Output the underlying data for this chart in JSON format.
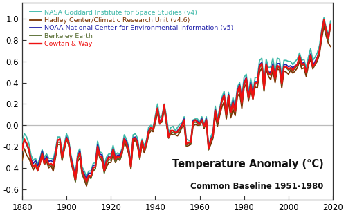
{
  "title": "Temperature Anomaly (°C)",
  "subtitle": "Common Baseline 1951-1980",
  "xlim": [
    1880,
    2020
  ],
  "ylim": [
    -0.7,
    1.15
  ],
  "yticks": [
    -0.6,
    -0.4,
    -0.2,
    0.0,
    0.2,
    0.4,
    0.6,
    0.8,
    1.0
  ],
  "xticks": [
    1880,
    1900,
    1920,
    1940,
    1960,
    1980,
    2000,
    2020
  ],
  "series_colors": [
    "#3CB8A8",
    "#7B3300",
    "#2222AA",
    "#556B2F",
    "#EE1111"
  ],
  "series_labels": [
    "NASA Goddard Institute for Space Studies (v4)",
    "Hadley Center/Climatic Research Unit (v4.6)",
    "NOAA National Center for Environmental Information (v5)",
    "Berkeley Earth",
    "Cowtan & Way"
  ],
  "series_lw": [
    1.3,
    1.3,
    1.3,
    1.3,
    1.7
  ],
  "series_zorder": [
    3,
    4,
    5,
    6,
    7
  ],
  "background_color": "#FFFFFF",
  "zero_line_color": "#BBBBBB",
  "legend_fontsize": 6.8,
  "title_fontsize": 10.5,
  "subtitle_fontsize": 8.5,
  "tick_fontsize": 8.5,
  "spine_color": "#333333",
  "years": [
    1880,
    1881,
    1882,
    1883,
    1884,
    1885,
    1886,
    1887,
    1888,
    1889,
    1890,
    1891,
    1892,
    1893,
    1894,
    1895,
    1896,
    1897,
    1898,
    1899,
    1900,
    1901,
    1902,
    1903,
    1904,
    1905,
    1906,
    1907,
    1908,
    1909,
    1910,
    1911,
    1912,
    1913,
    1914,
    1915,
    1916,
    1917,
    1918,
    1919,
    1920,
    1921,
    1922,
    1923,
    1924,
    1925,
    1926,
    1927,
    1928,
    1929,
    1930,
    1931,
    1932,
    1933,
    1934,
    1935,
    1936,
    1937,
    1938,
    1939,
    1940,
    1941,
    1942,
    1943,
    1944,
    1945,
    1946,
    1947,
    1948,
    1949,
    1950,
    1951,
    1952,
    1953,
    1954,
    1955,
    1956,
    1957,
    1958,
    1959,
    1960,
    1961,
    1962,
    1963,
    1964,
    1965,
    1966,
    1967,
    1968,
    1969,
    1970,
    1971,
    1972,
    1973,
    1974,
    1975,
    1976,
    1977,
    1978,
    1979,
    1980,
    1981,
    1982,
    1983,
    1984,
    1985,
    1986,
    1987,
    1988,
    1989,
    1990,
    1991,
    1992,
    1993,
    1994,
    1995,
    1996,
    1997,
    1998,
    1999,
    2000,
    2001,
    2002,
    2003,
    2004,
    2005,
    2006,
    2007,
    2008,
    2009,
    2010,
    2011,
    2012,
    2013,
    2014,
    2015,
    2016,
    2017,
    2018,
    2019
  ],
  "nasa_giss": [
    -0.16,
    -0.08,
    -0.11,
    -0.17,
    -0.28,
    -0.33,
    -0.31,
    -0.36,
    -0.31,
    -0.23,
    -0.3,
    -0.27,
    -0.31,
    -0.31,
    -0.32,
    -0.23,
    -0.11,
    -0.11,
    -0.26,
    -0.17,
    -0.08,
    -0.14,
    -0.28,
    -0.37,
    -0.47,
    -0.26,
    -0.22,
    -0.39,
    -0.43,
    -0.48,
    -0.43,
    -0.43,
    -0.36,
    -0.35,
    -0.15,
    -0.25,
    -0.26,
    -0.37,
    -0.3,
    -0.27,
    -0.27,
    -0.19,
    -0.28,
    -0.26,
    -0.27,
    -0.22,
    -0.09,
    -0.13,
    -0.2,
    -0.36,
    -0.09,
    -0.08,
    -0.12,
    -0.27,
    -0.13,
    -0.19,
    -0.14,
    -0.02,
    -0.0,
    -0.02,
    0.09,
    0.2,
    0.07,
    0.09,
    0.2,
    0.09,
    -0.07,
    -0.02,
    -0.01,
    -0.05,
    -0.02,
    0.01,
    0.02,
    0.08,
    -0.13,
    -0.14,
    -0.15,
    0.05,
    0.06,
    0.06,
    0.03,
    0.08,
    0.01,
    0.08,
    -0.2,
    -0.11,
    -0.06,
    0.18,
    0.07,
    0.16,
    0.26,
    0.32,
    0.14,
    0.31,
    0.16,
    0.26,
    0.18,
    0.36,
    0.4,
    0.27,
    0.45,
    0.48,
    0.31,
    0.44,
    0.31,
    0.45,
    0.45,
    0.61,
    0.63,
    0.4,
    0.62,
    0.54,
    0.55,
    0.63,
    0.49,
    0.63,
    0.62,
    0.46,
    0.61,
    0.61,
    0.6,
    0.6,
    0.57,
    0.6,
    0.62,
    0.68,
    0.61,
    0.62,
    0.54,
    0.64,
    0.72,
    0.61,
    0.64,
    0.68,
    0.75,
    0.9,
    1.01,
    0.92,
    0.85,
    0.98
  ],
  "hadcrut": [
    -0.33,
    -0.22,
    -0.28,
    -0.31,
    -0.36,
    -0.42,
    -0.38,
    -0.43,
    -0.37,
    -0.28,
    -0.37,
    -0.34,
    -0.4,
    -0.38,
    -0.43,
    -0.31,
    -0.18,
    -0.18,
    -0.33,
    -0.23,
    -0.14,
    -0.18,
    -0.35,
    -0.43,
    -0.53,
    -0.34,
    -0.31,
    -0.46,
    -0.51,
    -0.57,
    -0.48,
    -0.49,
    -0.43,
    -0.41,
    -0.21,
    -0.3,
    -0.34,
    -0.44,
    -0.39,
    -0.35,
    -0.35,
    -0.27,
    -0.35,
    -0.31,
    -0.33,
    -0.27,
    -0.16,
    -0.2,
    -0.27,
    -0.41,
    -0.16,
    -0.14,
    -0.2,
    -0.31,
    -0.18,
    -0.26,
    -0.19,
    -0.09,
    -0.05,
    -0.06,
    0.02,
    0.12,
    0.02,
    0.03,
    0.15,
    0.01,
    -0.12,
    -0.08,
    -0.09,
    -0.09,
    -0.1,
    -0.07,
    -0.02,
    0.0,
    -0.2,
    -0.19,
    -0.18,
    -0.01,
    0.01,
    0.0,
    -0.0,
    0.04,
    -0.03,
    0.04,
    -0.23,
    -0.18,
    -0.12,
    0.09,
    -0.01,
    0.09,
    0.17,
    0.22,
    0.06,
    0.22,
    0.07,
    0.15,
    0.09,
    0.27,
    0.3,
    0.16,
    0.35,
    0.39,
    0.23,
    0.34,
    0.25,
    0.36,
    0.35,
    0.5,
    0.54,
    0.32,
    0.53,
    0.46,
    0.43,
    0.52,
    0.4,
    0.53,
    0.52,
    0.35,
    0.51,
    0.5,
    0.48,
    0.52,
    0.49,
    0.51,
    0.54,
    0.6,
    0.53,
    0.54,
    0.46,
    0.56,
    0.62,
    0.53,
    0.57,
    0.6,
    0.67,
    0.81,
    0.93,
    0.84,
    0.77,
    0.74
  ],
  "noaa_ncei": [
    -0.22,
    -0.14,
    -0.18,
    -0.23,
    -0.32,
    -0.36,
    -0.33,
    -0.38,
    -0.33,
    -0.24,
    -0.33,
    -0.29,
    -0.34,
    -0.33,
    -0.35,
    -0.26,
    -0.14,
    -0.13,
    -0.29,
    -0.2,
    -0.11,
    -0.16,
    -0.3,
    -0.39,
    -0.49,
    -0.29,
    -0.24,
    -0.42,
    -0.46,
    -0.5,
    -0.45,
    -0.45,
    -0.38,
    -0.37,
    -0.18,
    -0.27,
    -0.28,
    -0.4,
    -0.33,
    -0.29,
    -0.29,
    -0.22,
    -0.3,
    -0.28,
    -0.28,
    -0.24,
    -0.12,
    -0.15,
    -0.22,
    -0.37,
    -0.12,
    -0.11,
    -0.15,
    -0.28,
    -0.15,
    -0.22,
    -0.16,
    -0.05,
    -0.02,
    -0.04,
    0.05,
    0.16,
    0.04,
    0.06,
    0.18,
    0.05,
    -0.1,
    -0.05,
    -0.05,
    -0.07,
    -0.05,
    -0.02,
    0.01,
    0.06,
    -0.17,
    -0.16,
    -0.16,
    0.04,
    0.05,
    0.04,
    0.02,
    0.06,
    -0.01,
    0.06,
    -0.21,
    -0.13,
    -0.09,
    0.15,
    0.04,
    0.13,
    0.24,
    0.29,
    0.11,
    0.29,
    0.13,
    0.23,
    0.15,
    0.33,
    0.38,
    0.23,
    0.41,
    0.45,
    0.28,
    0.4,
    0.28,
    0.41,
    0.41,
    0.57,
    0.59,
    0.36,
    0.58,
    0.5,
    0.5,
    0.58,
    0.45,
    0.58,
    0.58,
    0.41,
    0.57,
    0.57,
    0.55,
    0.56,
    0.54,
    0.56,
    0.57,
    0.65,
    0.58,
    0.59,
    0.51,
    0.6,
    0.67,
    0.56,
    0.6,
    0.64,
    0.7,
    0.87,
    0.99,
    0.9,
    0.83,
    0.95
  ],
  "berkeley": [
    -0.2,
    -0.14,
    -0.17,
    -0.24,
    -0.35,
    -0.39,
    -0.36,
    -0.4,
    -0.36,
    -0.26,
    -0.37,
    -0.32,
    -0.38,
    -0.37,
    -0.39,
    -0.28,
    -0.16,
    -0.16,
    -0.32,
    -0.22,
    -0.13,
    -0.19,
    -0.33,
    -0.42,
    -0.53,
    -0.32,
    -0.27,
    -0.45,
    -0.49,
    -0.55,
    -0.49,
    -0.5,
    -0.42,
    -0.41,
    -0.22,
    -0.31,
    -0.32,
    -0.45,
    -0.36,
    -0.32,
    -0.33,
    -0.25,
    -0.34,
    -0.31,
    -0.32,
    -0.27,
    -0.15,
    -0.18,
    -0.25,
    -0.4,
    -0.14,
    -0.13,
    -0.19,
    -0.32,
    -0.17,
    -0.24,
    -0.19,
    -0.07,
    -0.03,
    -0.05,
    0.04,
    0.14,
    0.01,
    0.04,
    0.17,
    0.03,
    -0.12,
    -0.06,
    -0.07,
    -0.08,
    -0.07,
    -0.05,
    -0.0,
    0.04,
    -0.19,
    -0.17,
    -0.17,
    0.02,
    0.03,
    0.02,
    0.0,
    0.04,
    -0.02,
    0.04,
    -0.23,
    -0.15,
    -0.11,
    0.13,
    0.02,
    0.11,
    0.22,
    0.27,
    0.09,
    0.27,
    0.11,
    0.2,
    0.12,
    0.3,
    0.36,
    0.2,
    0.38,
    0.43,
    0.25,
    0.37,
    0.24,
    0.39,
    0.39,
    0.54,
    0.57,
    0.33,
    0.56,
    0.48,
    0.47,
    0.55,
    0.43,
    0.55,
    0.54,
    0.38,
    0.54,
    0.54,
    0.52,
    0.53,
    0.51,
    0.54,
    0.56,
    0.63,
    0.56,
    0.57,
    0.49,
    0.58,
    0.65,
    0.54,
    0.57,
    0.62,
    0.69,
    0.84,
    0.97,
    0.87,
    0.8,
    0.93
  ],
  "cowtan_way": [
    -0.23,
    -0.13,
    -0.17,
    -0.22,
    -0.33,
    -0.39,
    -0.37,
    -0.42,
    -0.36,
    -0.27,
    -0.36,
    -0.31,
    -0.37,
    -0.36,
    -0.38,
    -0.28,
    -0.14,
    -0.13,
    -0.3,
    -0.21,
    -0.12,
    -0.17,
    -0.32,
    -0.41,
    -0.51,
    -0.3,
    -0.26,
    -0.43,
    -0.48,
    -0.53,
    -0.47,
    -0.48,
    -0.4,
    -0.39,
    -0.2,
    -0.29,
    -0.3,
    -0.43,
    -0.34,
    -0.3,
    -0.31,
    -0.23,
    -0.32,
    -0.29,
    -0.3,
    -0.25,
    -0.13,
    -0.17,
    -0.24,
    -0.39,
    -0.13,
    -0.12,
    -0.17,
    -0.3,
    -0.15,
    -0.23,
    -0.17,
    -0.06,
    -0.02,
    -0.04,
    0.06,
    0.16,
    0.02,
    0.05,
    0.19,
    0.04,
    -0.11,
    -0.05,
    -0.05,
    -0.07,
    -0.06,
    -0.03,
    0.0,
    0.05,
    -0.18,
    -0.16,
    -0.16,
    0.03,
    0.05,
    0.03,
    0.01,
    0.05,
    -0.01,
    0.05,
    -0.22,
    -0.14,
    -0.1,
    0.14,
    0.03,
    0.12,
    0.23,
    0.28,
    0.1,
    0.28,
    0.12,
    0.21,
    0.13,
    0.31,
    0.37,
    0.21,
    0.39,
    0.44,
    0.26,
    0.38,
    0.25,
    0.4,
    0.4,
    0.55,
    0.58,
    0.34,
    0.57,
    0.49,
    0.48,
    0.56,
    0.44,
    0.56,
    0.55,
    0.39,
    0.55,
    0.55,
    0.53,
    0.54,
    0.52,
    0.55,
    0.57,
    0.65,
    0.57,
    0.58,
    0.5,
    0.59,
    0.66,
    0.55,
    0.58,
    0.63,
    0.7,
    0.86,
    0.99,
    0.89,
    0.82,
    0.95
  ]
}
